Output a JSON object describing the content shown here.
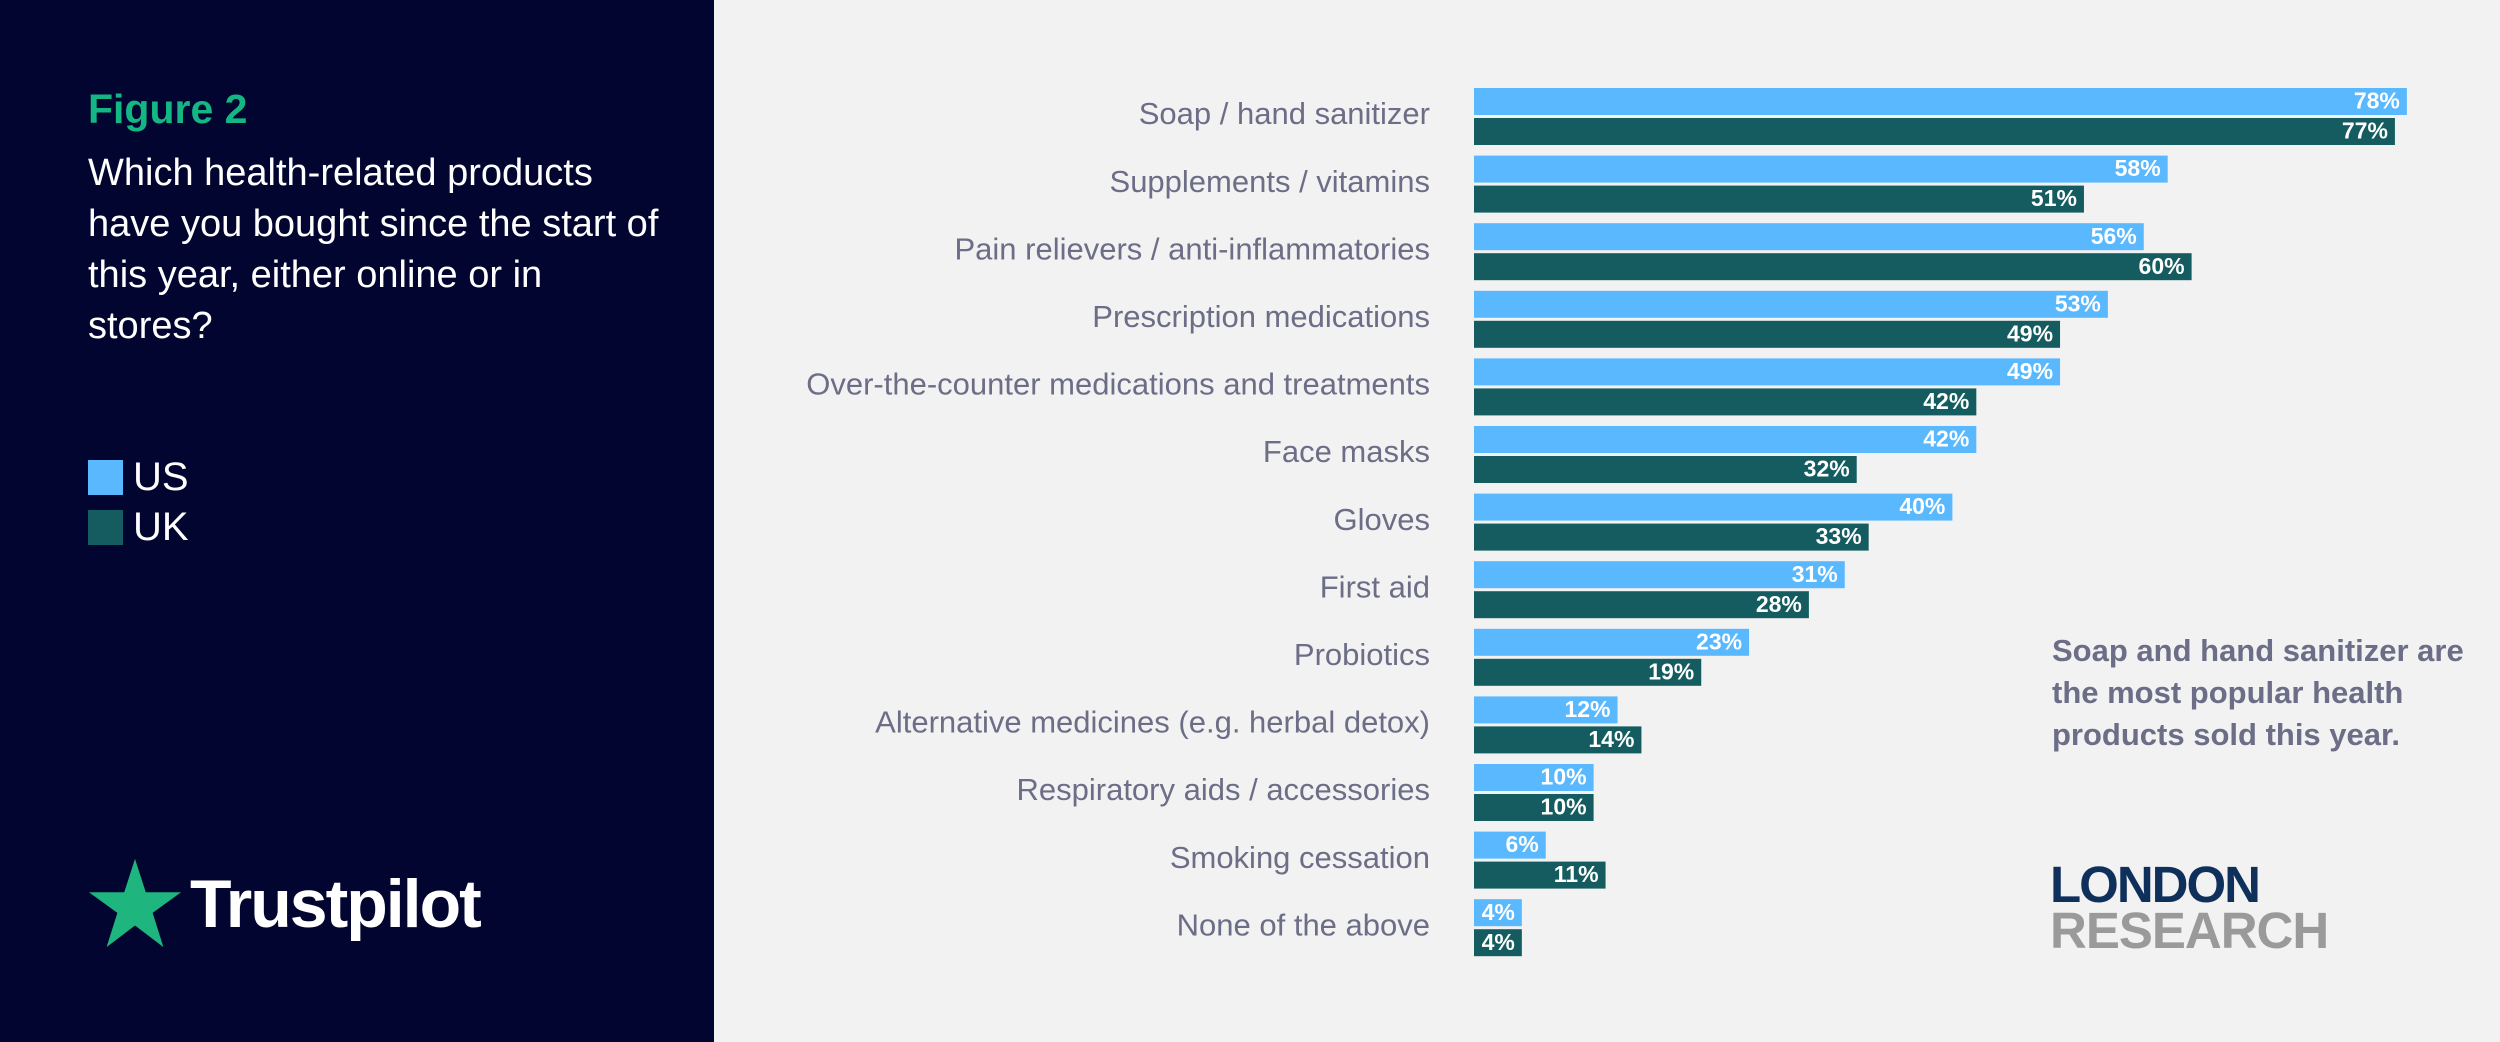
{
  "figure_label": "Figure 2",
  "question": "Which health-related products have you bought since the start of this year, either online or in stores?",
  "legend": [
    {
      "label": "US",
      "color": "#5ab8ff"
    },
    {
      "label": "UK",
      "color": "#145c5f"
    }
  ],
  "logo": {
    "name": "Trustpilot",
    "icon": "star-icon",
    "color": "#1fb57f"
  },
  "annotation": "Soap and hand sanitizer are the most popular health products sold this year.",
  "brand": {
    "line1": "LONDON",
    "line2": "RESEARCH"
  },
  "chart_data": {
    "type": "bar",
    "orientation": "horizontal",
    "categories": [
      "Soap / hand sanitizer",
      "Supplements / vitamins",
      "Pain relievers / anti-inflammatories",
      "Prescription medications",
      "Over-the-counter medications and treatments",
      "Face masks",
      "Gloves",
      "First aid",
      "Probiotics",
      "Alternative medicines (e.g. herbal detox)",
      "Respiratory aids / accessories",
      "Smoking cessation",
      "None of the above"
    ],
    "series": [
      {
        "name": "US",
        "color": "#5ab8ff",
        "values": [
          78,
          58,
          56,
          53,
          49,
          42,
          40,
          31,
          23,
          12,
          10,
          6,
          4
        ]
      },
      {
        "name": "UK",
        "color": "#145c5f",
        "values": [
          77,
          51,
          60,
          49,
          42,
          32,
          33,
          28,
          19,
          14,
          10,
          11,
          4
        ]
      }
    ],
    "value_suffix": "%",
    "xlim": [
      0,
      100
    ],
    "grid": false,
    "legend_position": "left"
  }
}
